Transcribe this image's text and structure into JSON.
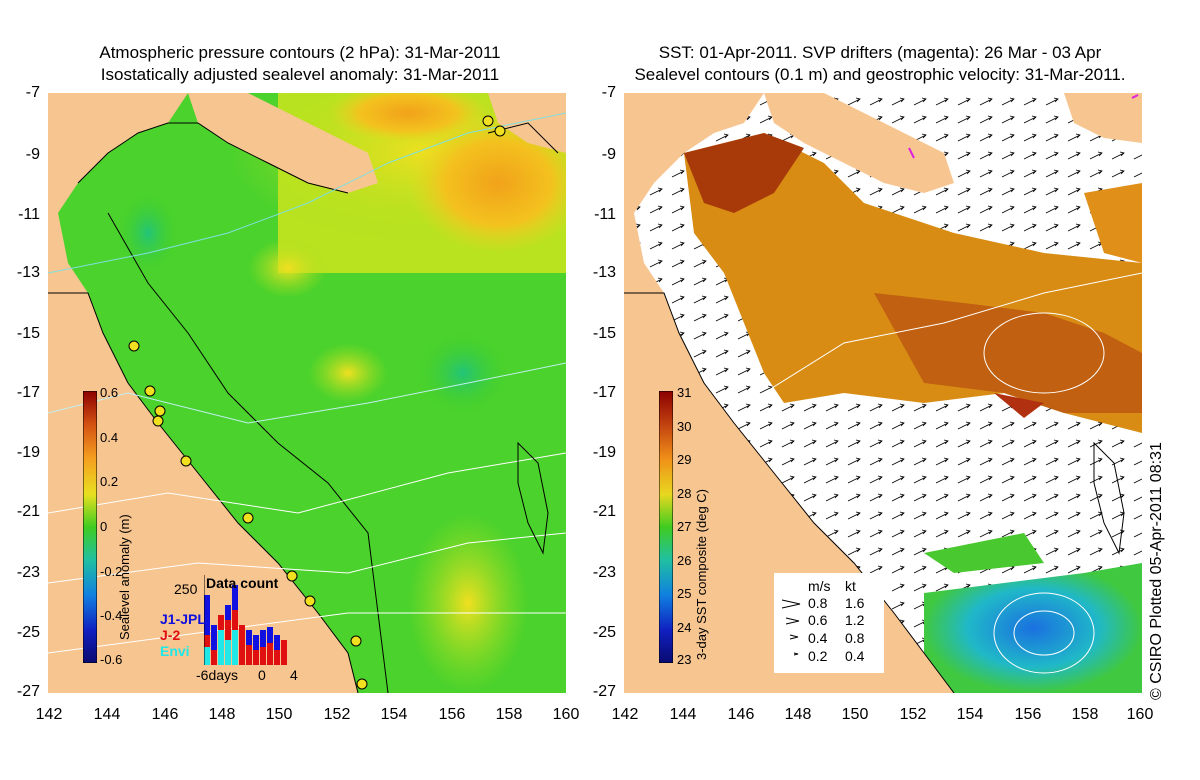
{
  "left_panel": {
    "title_line1": "Atmospheric pressure contours (2 hPa): 31-Mar-2011",
    "title_line2": "Isostatically adjusted sealevel anomaly: 31-Mar-2011",
    "colorbar": {
      "label": "Sealevel anomaly (m)",
      "ticks": [
        "0.6",
        "0.4",
        "0.2",
        "0",
        "-0.2",
        "-0.4",
        "-0.6"
      ],
      "range": [
        -0.6,
        0.6
      ]
    },
    "inset": {
      "title": "Data count",
      "y_tick": "250",
      "x_ticks": [
        "-6days",
        "0",
        "4"
      ],
      "legend": [
        {
          "label": "J1-JPL",
          "color": "#1010e0"
        },
        {
          "label": "J-2",
          "color": "#e01010"
        },
        {
          "label": "Envi",
          "color": "#20e8e8"
        }
      ]
    }
  },
  "right_panel": {
    "title_line1": "SST: 01-Apr-2011. SVP drifters (magenta): 26 Mar - 03 Apr",
    "title_line2": "Sealevel contours (0.1 m) and geostrophic velocity: 31-Mar-2011.",
    "colorbar": {
      "label": "3-day SST composite (deg C)",
      "ticks": [
        "31",
        "30",
        "29",
        "28",
        "27",
        "26",
        "25",
        "24",
        "23"
      ],
      "range": [
        23,
        31
      ]
    },
    "speed_legend": {
      "headers": [
        "m/s",
        "kt"
      ],
      "rows": [
        {
          "ms": "0.8",
          "kt": "1.6"
        },
        {
          "ms": "0.6",
          "kt": "1.2"
        },
        {
          "ms": "0.4",
          "kt": "0.8"
        },
        {
          "ms": "0.2",
          "kt": "0.4"
        }
      ]
    }
  },
  "axes": {
    "lat_ticks": [
      "-7",
      "-9",
      "-11",
      "-13",
      "-15",
      "-17",
      "-19",
      "-21",
      "-23",
      "-25",
      "-27"
    ],
    "lon_ticks": [
      "142",
      "144",
      "146",
      "148",
      "150",
      "152",
      "154",
      "156",
      "158",
      "160"
    ]
  },
  "credit": "© CSIRO Plotted 05-Apr-2011 08:31",
  "colors": {
    "land": "#f7c590",
    "sea_green": "#3ccf2a",
    "sst_orange": "#d4880a",
    "sst_red": "#a0300a"
  }
}
